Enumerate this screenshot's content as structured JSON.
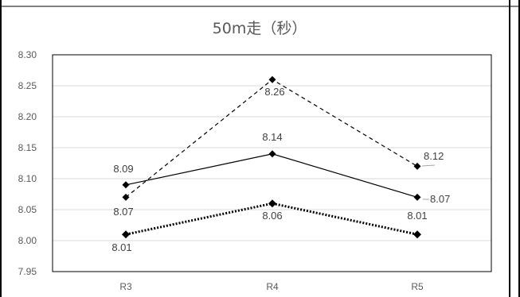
{
  "chart_data": {
    "type": "line",
    "title": "50m走（秒）",
    "xlabel": "",
    "ylabel": "",
    "categories": [
      "R3",
      "R4",
      "R5"
    ],
    "ylim": [
      7.95,
      8.3
    ],
    "yticks": [
      "8.30",
      "8.25",
      "8.20",
      "8.15",
      "8.10",
      "8.05",
      "8.00",
      "7.95"
    ],
    "grid": true,
    "legend": "none",
    "series": [
      {
        "values": [
          8.07,
          8.26,
          8.12
        ],
        "labels": [
          "8.07",
          "8.26",
          "8.12"
        ],
        "style": "dashed",
        "marker": "diamond"
      },
      {
        "values": [
          8.09,
          8.14,
          8.07
        ],
        "labels": [
          "8.09",
          "8.14",
          "8.07"
        ],
        "style": "solid",
        "marker": "diamond"
      },
      {
        "values": [
          8.01,
          8.06,
          8.01
        ],
        "labels": [
          "8.01",
          "8.06",
          "8.01"
        ],
        "style": "dotted-thick",
        "marker": "diamond"
      }
    ],
    "colors": {
      "line": "#000000",
      "grid": "#d9d9d9",
      "frame": "#000000"
    }
  }
}
